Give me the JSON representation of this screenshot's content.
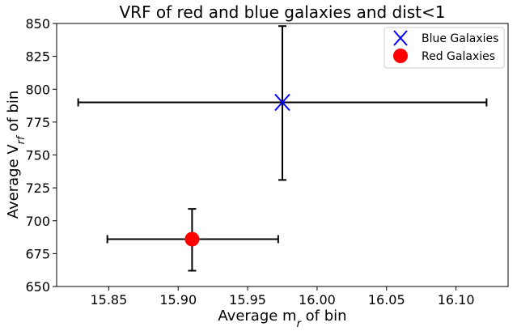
{
  "chart_data": {
    "type": "scatter",
    "title": "VRF of red and blue galaxies and dist<1",
    "xlabel_main": "Average m",
    "xlabel_sub": "r",
    "xlabel_tail": " of bin",
    "ylabel_main": "Average V",
    "ylabel_sub": "rf",
    "ylabel_tail": " of bin",
    "xlim": [
      15.8125,
      16.1375
    ],
    "ylim": [
      650,
      850
    ],
    "xticks": [
      15.85,
      15.9,
      15.95,
      16.0,
      16.05,
      16.1
    ],
    "xtick_labels": [
      "15.85",
      "15.90",
      "15.95",
      "16.00",
      "16.05",
      "16.10"
    ],
    "yticks": [
      650,
      675,
      700,
      725,
      750,
      775,
      800,
      825,
      850
    ],
    "ytick_labels": [
      "650",
      "675",
      "700",
      "725",
      "750",
      "775",
      "800",
      "825",
      "850"
    ],
    "legend_position": "upper-right",
    "series": [
      {
        "name": "Blue Galaxies",
        "marker": "x",
        "color": "#0000ff",
        "x": 15.975,
        "y": 790,
        "xerr": [
          15.828,
          16.122
        ],
        "yerr": [
          731,
          848
        ]
      },
      {
        "name": "Red Galaxies",
        "marker": "o",
        "color": "#ff0000",
        "x": 15.91,
        "y": 686,
        "xerr": [
          15.849,
          15.972
        ],
        "yerr": [
          662,
          709
        ]
      }
    ],
    "errorbar_color": "#000000"
  }
}
